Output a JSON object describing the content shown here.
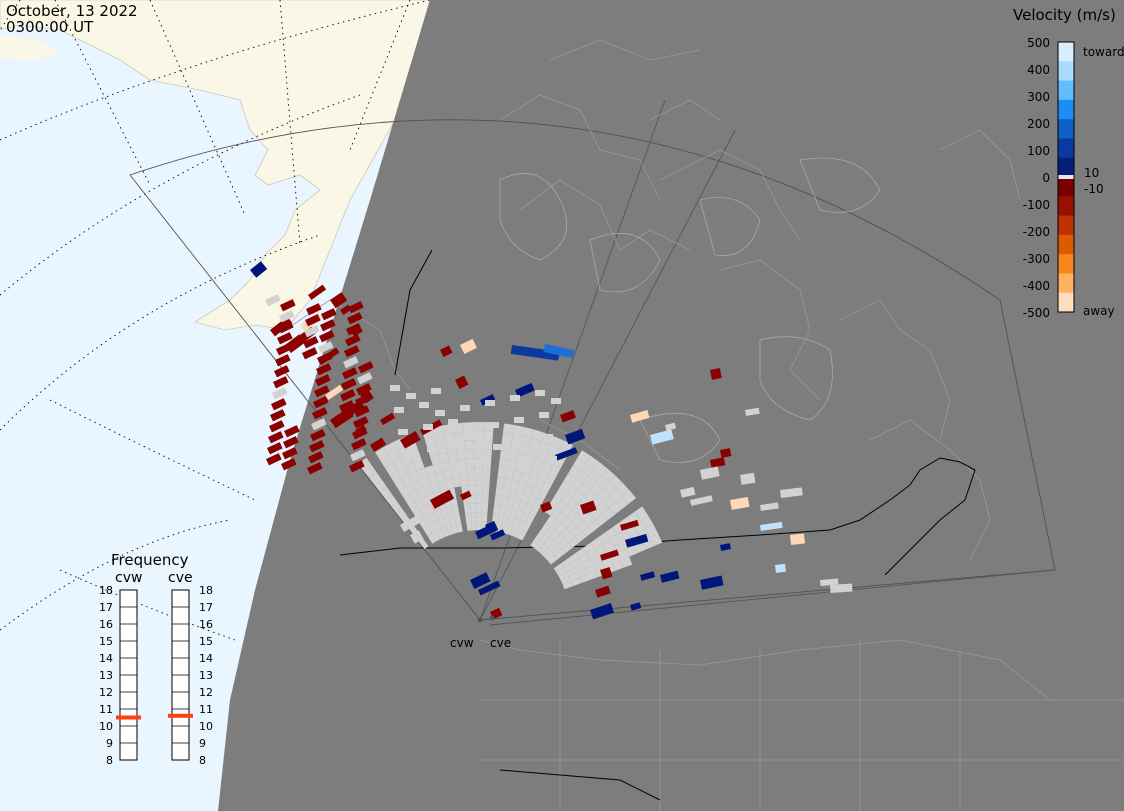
{
  "header": {
    "date": "October, 13 2022",
    "time": "0300:00 UT"
  },
  "colorbar": {
    "title": "Velocity (m/s)",
    "ticks": [
      "500",
      "400",
      "300",
      "200",
      "100",
      "0",
      "-100",
      "-200",
      "-300",
      "-400",
      "-500"
    ],
    "side_labels": {
      "toward": "toward",
      "ten": "10",
      "minus_ten": "-10",
      "away": "away"
    },
    "colors": [
      "#d8eefe",
      "#a8dcff",
      "#62bdff",
      "#1a8ef2",
      "#0f60c8",
      "#0a3aa0",
      "#061f7a",
      "#7a0000",
      "#9a1000",
      "#bd3200",
      "#de5a00",
      "#f6861a",
      "#ffb060",
      "#fedcc0"
    ],
    "ground_scatter_color": "#d2d2d2"
  },
  "frequency": {
    "title": "Frequency",
    "columns": [
      {
        "label": "cvw",
        "value_mhz": 10.5
      },
      {
        "label": "cve",
        "value_mhz": 10.6
      }
    ],
    "scale": [
      "18",
      "17",
      "16",
      "15",
      "14",
      "13",
      "12",
      "11",
      "10",
      "9",
      "8"
    ],
    "marker_color": "#ff4010"
  },
  "radars": [
    {
      "label": "cvw"
    },
    {
      "label": "cve"
    }
  ],
  "map": {
    "ocean_color": "#eaf6ff",
    "land_color": "#fbf7e6",
    "night_color": "#7d7d7d",
    "boundary_color": "#999999"
  }
}
